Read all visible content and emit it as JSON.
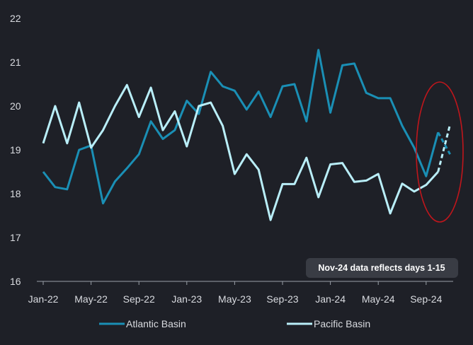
{
  "chart_data": {
    "type": "line",
    "title": "",
    "xlabel": "",
    "ylabel": "",
    "ylim": [
      16,
      22
    ],
    "yticks": [
      16,
      17,
      18,
      19,
      20,
      21,
      22
    ],
    "x": [
      "Jan-22",
      "Feb-22",
      "Mar-22",
      "Apr-22",
      "May-22",
      "Jun-22",
      "Jul-22",
      "Aug-22",
      "Sep-22",
      "Oct-22",
      "Nov-22",
      "Dec-22",
      "Jan-23",
      "Feb-23",
      "Mar-23",
      "Apr-23",
      "May-23",
      "Jun-23",
      "Jul-23",
      "Aug-23",
      "Sep-23",
      "Oct-23",
      "Nov-23",
      "Dec-23",
      "Jan-24",
      "Feb-24",
      "Mar-24",
      "Apr-24",
      "May-24",
      "Jun-24",
      "Jul-24",
      "Aug-24",
      "Sep-24",
      "Oct-24",
      "Nov-24"
    ],
    "xticks": [
      "Jan-22",
      "May-22",
      "Sep-22",
      "Jan-23",
      "May-23",
      "Sep-23",
      "Jan-24",
      "May-24",
      "Sep-24"
    ],
    "series": [
      {
        "name": "Atlantic Basin",
        "color": "#1a8fb5",
        "values": [
          18.5,
          18.15,
          18.1,
          19.0,
          19.1,
          17.78,
          18.28,
          18.58,
          18.9,
          19.65,
          19.25,
          19.45,
          20.12,
          19.82,
          20.78,
          20.45,
          20.35,
          19.92,
          20.33,
          19.75,
          20.45,
          20.5,
          19.65,
          21.28,
          19.85,
          20.93,
          20.97,
          20.3,
          20.18,
          20.18,
          19.55,
          19.05,
          18.4,
          19.4,
          18.9
        ],
        "dashed_from_index": 33
      },
      {
        "name": "Pacific Basin",
        "color": "#b9eef8",
        "values": [
          19.15,
          20.0,
          19.15,
          20.08,
          19.05,
          19.45,
          20.0,
          20.48,
          19.75,
          20.42,
          19.45,
          19.88,
          19.08,
          20.0,
          20.08,
          19.55,
          18.45,
          18.9,
          18.55,
          17.4,
          18.22,
          18.22,
          18.82,
          17.92,
          18.67,
          18.7,
          18.27,
          18.3,
          18.45,
          17.55,
          18.23,
          18.05,
          18.2,
          18.5,
          19.58
        ],
        "dashed_from_index": 33
      }
    ],
    "legend": {
      "placement": "bottom",
      "items": [
        "Atlantic Basin",
        "Pacific Basin"
      ]
    },
    "annotations": [
      {
        "text": "Nov-24 data reflects days 1-15",
        "placement": "bottom-right"
      }
    ],
    "highlight": {
      "shape": "ellipse",
      "color": "#c0161c",
      "around": [
        "Sep-24",
        "Nov-24"
      ]
    },
    "grid": false
  }
}
